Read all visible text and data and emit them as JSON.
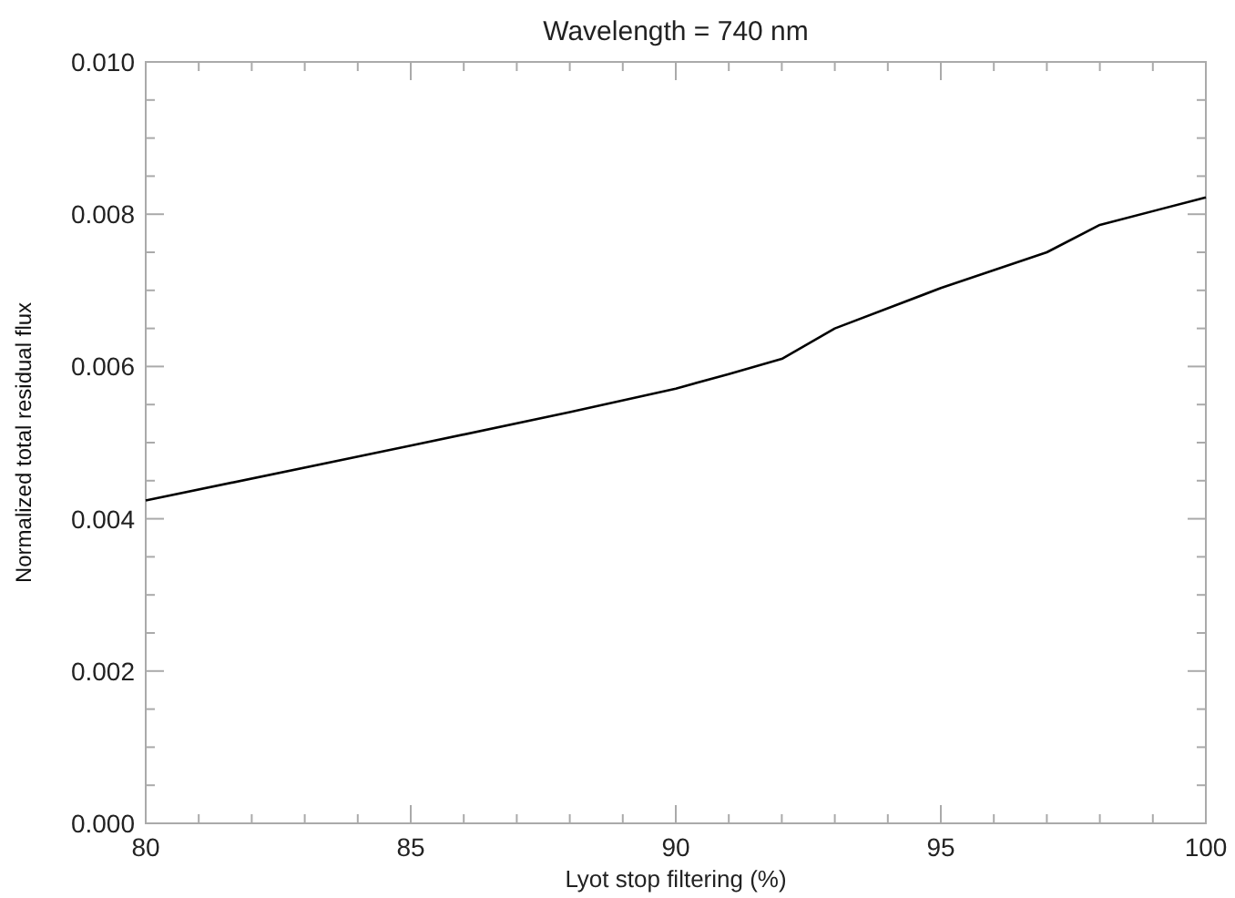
{
  "chart_data": {
    "type": "line",
    "title": "Wavelength = 740 nm",
    "xlabel": "Lyot stop filtering (%)",
    "ylabel": "Normalized total residual flux",
    "x": [
      80,
      85,
      88,
      90,
      91,
      92,
      93,
      95,
      97,
      98,
      100
    ],
    "series": [
      {
        "color": "#000000",
        "values": [
          0.00424,
          0.00496,
          0.0054,
          0.00571,
          0.0059,
          0.0061,
          0.0065,
          0.00703,
          0.0075,
          0.00786,
          0.00822
        ]
      }
    ],
    "xlim": [
      80,
      100
    ],
    "xticks": [
      80,
      85,
      90,
      95,
      100
    ],
    "ylim": [
      0,
      0.01
    ],
    "yticks": [
      {
        "value": 0,
        "label": "0.000"
      },
      {
        "value": 0.002,
        "label": "0.002"
      },
      {
        "value": 0.004,
        "label": "0.004"
      },
      {
        "value": 0.006,
        "label": "0.006"
      },
      {
        "value": 0.008,
        "label": "0.008"
      },
      {
        "value": 0.01,
        "label": "0.010"
      }
    ],
    "grid": false,
    "marker": "none",
    "line_style": "solid"
  }
}
